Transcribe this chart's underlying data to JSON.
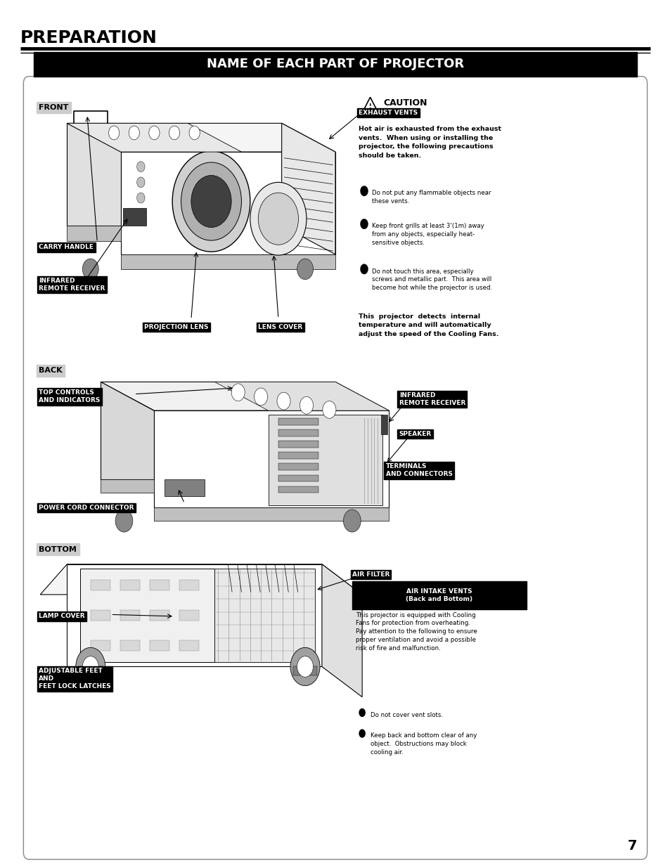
{
  "page_width": 9.54,
  "page_height": 12.35,
  "bg_color": "#ffffff",
  "title_section": "PREPARATION",
  "subtitle": "NAME OF EACH PART OF PROJECTOR",
  "page_number": "7",
  "caution_text": "Hot air is exhausted from the exhaust\nvents.  When using or installing the\nprojector, the following precautions\nshould be taken.",
  "bullet_points": [
    "Do not put any flammable objects near\nthese vents.",
    "Keep front grills at least 3'(1m) away\nfrom any objects, especially heat-\nsensitive objects.",
    "Do not touch this area, especially\nscrews and metallic part.  This area will\nbecome hot while the projector is used."
  ],
  "cooling_text": "This  projector  detects  internal\ntemperature and will automatically\nadjust the speed of the Cooling Fans.",
  "bottom_text1": "This projector is equipped with Cooling\nFans for protection from overheating.\nPay attention to the following to ensure\nproper ventilation and avoid a possible\nrisk of fire and malfunction.",
  "bottom_bullets": [
    "Do not cover vent slots.",
    "Keep back and bottom clear of any\nobject.  Obstructions may block\ncooling air."
  ]
}
